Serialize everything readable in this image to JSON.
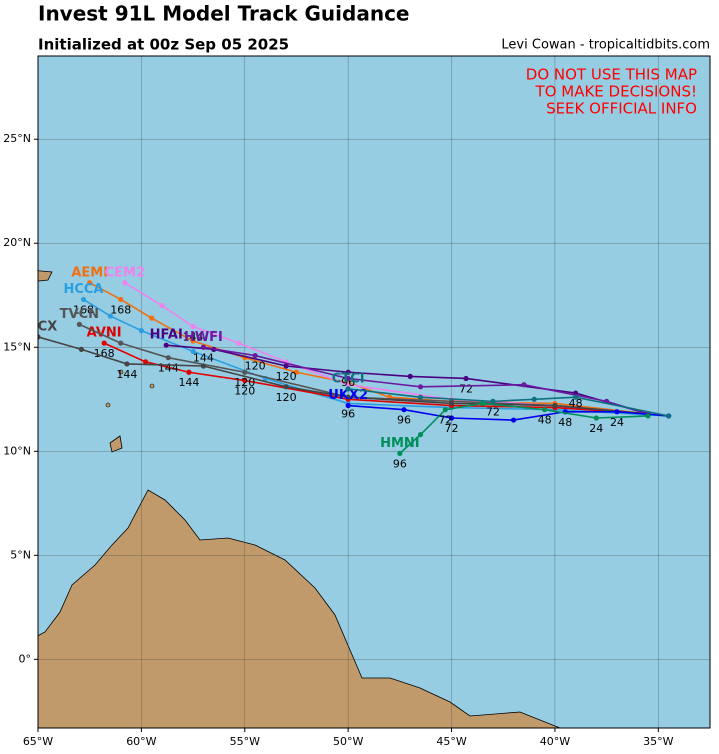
{
  "chart_data": {
    "type": "track-map",
    "title": "Invest 91L Model Track Guidance",
    "subtitle": "Initialized at 00z Sep 05 2025",
    "credit": "Levi Cowan - tropicaltidbits.com",
    "warning": [
      "DO NOT USE THIS MAP",
      "TO MAKE DECISIONS!",
      "SEEK OFFICIAL INFO"
    ],
    "xlim": [
      -65,
      -32.5
    ],
    "ylim": [
      -3.3,
      29
    ],
    "xticks": [
      {
        "value": -65,
        "label": "65°W"
      },
      {
        "value": -60,
        "label": "60°W"
      },
      {
        "value": -55,
        "label": "55°W"
      },
      {
        "value": -50,
        "label": "50°W"
      },
      {
        "value": -45,
        "label": "45°W"
      },
      {
        "value": -40,
        "label": "40°W"
      },
      {
        "value": -35,
        "label": "35°W"
      }
    ],
    "yticks": [
      {
        "value": 0,
        "label": "0°"
      },
      {
        "value": 5,
        "label": "5°N"
      },
      {
        "value": 10,
        "label": "10°N"
      },
      {
        "value": 15,
        "label": "15°N"
      },
      {
        "value": 20,
        "label": "20°N"
      },
      {
        "value": 25,
        "label": "25°N"
      }
    ],
    "grid": true,
    "series": [
      {
        "name": "AEMI",
        "color": "#f07010",
        "lon": [
          -35.5,
          -40,
          -45,
          -48,
          -50,
          -52.5,
          -55,
          -57.5,
          -59.5,
          -61,
          -62.5
        ],
        "lat": [
          11.8,
          12.3,
          12.4,
          12.6,
          13.3,
          13.8,
          14.5,
          15.3,
          16.4,
          17.3,
          18.1
        ],
        "hours": [
          null,
          null,
          null,
          null,
          null,
          null,
          null,
          null,
          null,
          168,
          null
        ]
      },
      {
        "name": "CEM2",
        "color": "#ee82ee",
        "lon": [
          -35.5,
          -40,
          -45,
          -50,
          -53,
          -55.3,
          -57.5,
          -59,
          -60.8
        ],
        "lat": [
          11.8,
          12.2,
          12.5,
          13.2,
          14.3,
          15.2,
          16,
          17,
          18.1
        ],
        "hours": [
          null,
          null,
          null,
          null,
          null,
          null,
          144,
          null,
          null
        ]
      },
      {
        "name": "HCCA",
        "color": "#2a9ee0",
        "lon": [
          -34.5,
          -40,
          -45,
          -50,
          -54,
          -57.5,
          -60,
          -61.5,
          -62.8
        ],
        "lat": [
          11.7,
          12,
          12.1,
          12.3,
          13.5,
          14.8,
          15.8,
          16.5,
          17.3
        ],
        "hours": [
          null,
          null,
          null,
          96,
          null,
          null,
          null,
          null,
          168
        ]
      },
      {
        "name": "AVNI",
        "color": "#e00000",
        "lon": [
          -35.5,
          -40,
          -45,
          -50,
          -55,
          -57.7,
          -59.8,
          -61.8
        ],
        "lat": [
          11.8,
          12.1,
          12.2,
          12.5,
          13.4,
          13.8,
          14.3,
          15.2
        ],
        "hours": [
          null,
          null,
          null,
          null,
          120,
          144,
          null,
          168
        ]
      },
      {
        "name": "TVCN",
        "color": "#555555",
        "lon": [
          -35.5,
          -40,
          -45,
          -50,
          -55,
          -58.7,
          -61,
          -63
        ],
        "lat": [
          11.8,
          12.2,
          12.4,
          12.6,
          13.8,
          14.5,
          15.2,
          16.1
        ],
        "hours": [
          null,
          null,
          null,
          null,
          120,
          144,
          null,
          null
        ]
      },
      {
        "name": "TVCX",
        "color": "#444444",
        "lon": [
          -35.5,
          -40,
          -45,
          -50,
          -53,
          -57,
          -60.7,
          -62.9,
          -65
        ],
        "lat": [
          11.8,
          12.2,
          12.3,
          12.6,
          13.1,
          14.1,
          14.2,
          14.9,
          15.5
        ],
        "hours": [
          null,
          null,
          null,
          null,
          120,
          null,
          144,
          null,
          null
        ]
      },
      {
        "name": "HFAI",
        "color": "#4b0082",
        "lon": [
          -35.5,
          -39,
          -44.3,
          -47,
          -50,
          -53,
          -56.5,
          -58.8
        ],
        "lat": [
          11.8,
          12.8,
          13.5,
          13.6,
          13.8,
          14.1,
          14.9,
          15.1
        ],
        "hours": [
          null,
          48,
          72,
          null,
          96,
          120,
          null,
          null
        ]
      },
      {
        "name": "HWFI",
        "color": "#6a1aa0",
        "lon": [
          -35.5,
          -37.5,
          -41.5,
          -46.5,
          -50,
          -54.5,
          -57
        ],
        "lat": [
          11.8,
          12.4,
          13.2,
          13.1,
          13.5,
          14.6,
          15
        ],
        "hours": [
          null,
          null,
          null,
          null,
          null,
          120,
          144
        ]
      },
      {
        "name": "UKX2",
        "color": "#0000ee",
        "lon": [
          -34.5,
          -37,
          -39.5,
          -42,
          -45,
          -47.3,
          -50
        ],
        "lat": [
          11.7,
          11.9,
          11.9,
          11.5,
          11.6,
          12,
          12.2
        ],
        "hours": [
          null,
          24,
          48,
          null,
          72,
          96,
          null
        ]
      },
      {
        "name": "CTCI",
        "color": "#0f7080",
        "lon": [
          -34.5,
          -39,
          -41,
          -43,
          -46.5,
          -50
        ],
        "lat": [
          11.7,
          12.6,
          12.5,
          12.4,
          12.6,
          13
        ],
        "hours": [
          null,
          null,
          null,
          72,
          null,
          null
        ]
      },
      {
        "name": "HMNI",
        "color": "#008f5a",
        "lon": [
          -35.5,
          -38,
          -40.5,
          -43.5,
          -45.3,
          -46.5,
          -47.5
        ],
        "lat": [
          11.7,
          11.6,
          12,
          12.3,
          12,
          10.8,
          9.9
        ],
        "hours": [
          null,
          24,
          48,
          null,
          72,
          null,
          96
        ]
      }
    ]
  }
}
